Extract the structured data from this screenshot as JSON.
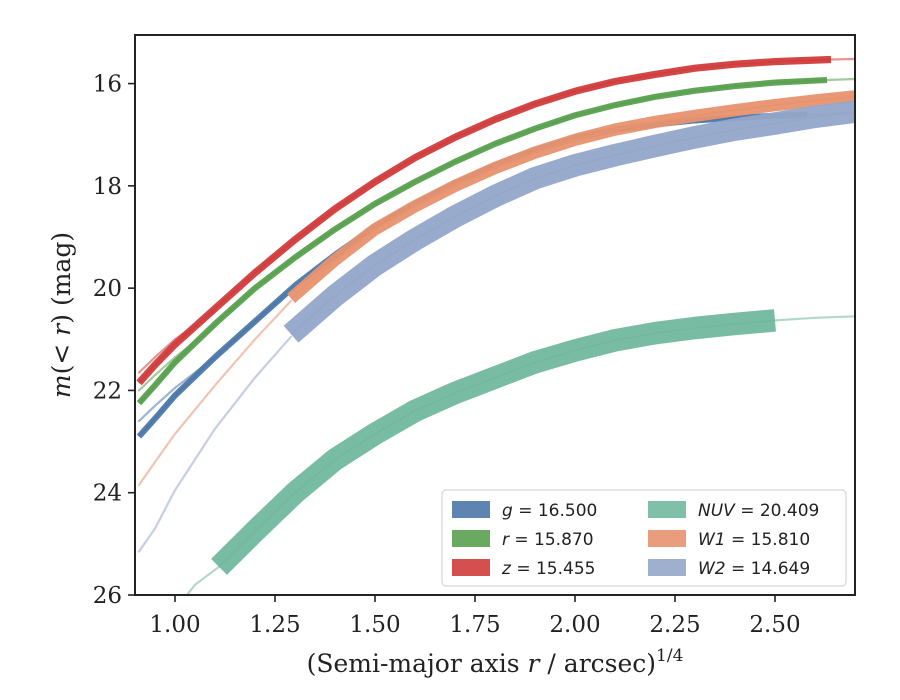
{
  "chart_data": {
    "type": "line",
    "xlabel": "(Semi-major axis r / arcsec)",
    "xlabel_parts": {
      "pre": "(Semi-major axis ",
      "var": "r",
      "post": " / arcsec)",
      "sup": "1/4"
    },
    "ylabel": "m(< r) (mag)",
    "ylabel_parts": {
      "m": "m",
      "open": "(",
      "lt": "< ",
      "r": "r",
      "rest": ") (mag)"
    },
    "xlim": [
      0.9,
      2.7
    ],
    "ylim": [
      26,
      15.05
    ],
    "y_inverted": true,
    "x_ticks": [
      "1.00",
      "1.25",
      "1.50",
      "1.75",
      "2.00",
      "2.25",
      "2.50"
    ],
    "x_tick_values": [
      1.0,
      1.25,
      1.5,
      1.75,
      2.0,
      2.25,
      2.5
    ],
    "y_ticks": [
      "16",
      "18",
      "20",
      "22",
      "24",
      "26"
    ],
    "y_tick_values": [
      16,
      18,
      20,
      22,
      24,
      26
    ],
    "grid": false,
    "legend_position": "lower-right",
    "legend_columns": 2,
    "series": [
      {
        "name": "g = 16.500",
        "band": "g",
        "mag": "16.500",
        "italic_band": true,
        "color": "#4c78a8",
        "band_width_mag": 0.06,
        "faint_x": [
          0.91,
          0.95,
          1.0,
          1.1
        ],
        "faint_y": [
          22.6,
          22.3,
          21.95,
          21.35
        ],
        "x": [
          0.91,
          0.95,
          1.0,
          1.1,
          1.2,
          1.3,
          1.4,
          1.5,
          1.6,
          1.7,
          1.8,
          1.9,
          2.0,
          2.1,
          2.2,
          2.3,
          2.4,
          2.5,
          2.58
        ],
        "y": [
          22.9,
          22.55,
          22.1,
          21.35,
          20.65,
          19.95,
          19.35,
          18.8,
          18.35,
          17.95,
          17.6,
          17.3,
          17.07,
          16.9,
          16.8,
          16.72,
          16.67,
          16.63,
          16.61
        ],
        "tail_x": [
          2.58,
          2.7
        ],
        "tail_y": [
          16.61,
          16.58
        ]
      },
      {
        "name": "r = 15.870",
        "band": "r",
        "mag": "15.870",
        "italic_band": true,
        "color": "#59a14f",
        "band_width_mag": 0.06,
        "faint_x": [
          0.91,
          0.95,
          1.0,
          1.1
        ],
        "faint_y": [
          22.0,
          21.7,
          21.35,
          20.75
        ],
        "x": [
          0.91,
          0.95,
          1.0,
          1.1,
          1.2,
          1.3,
          1.4,
          1.5,
          1.6,
          1.7,
          1.8,
          1.9,
          2.0,
          2.1,
          2.2,
          2.3,
          2.4,
          2.5,
          2.63
        ],
        "y": [
          22.25,
          21.9,
          21.45,
          20.7,
          20.0,
          19.4,
          18.85,
          18.35,
          17.92,
          17.53,
          17.18,
          16.88,
          16.62,
          16.42,
          16.26,
          16.14,
          16.05,
          15.98,
          15.93
        ],
        "tail_x": [
          2.63,
          2.7
        ],
        "tail_y": [
          15.93,
          15.91
        ]
      },
      {
        "name": "z = 15.455",
        "band": "z",
        "mag": "15.455",
        "italic_band": true,
        "color": "#d13c3c",
        "band_width_mag": 0.07,
        "faint_x": [
          0.91,
          0.95,
          1.0,
          1.1
        ],
        "faint_y": [
          21.65,
          21.35,
          21.0,
          20.45
        ],
        "x": [
          0.91,
          0.95,
          1.0,
          1.1,
          1.2,
          1.3,
          1.4,
          1.5,
          1.6,
          1.7,
          1.8,
          1.9,
          2.0,
          2.1,
          2.2,
          2.3,
          2.4,
          2.5,
          2.64
        ],
        "y": [
          21.85,
          21.5,
          21.1,
          20.4,
          19.7,
          19.05,
          18.45,
          17.92,
          17.45,
          17.05,
          16.7,
          16.4,
          16.15,
          15.96,
          15.82,
          15.7,
          15.62,
          15.57,
          15.53
        ],
        "tail_x": [
          2.64,
          2.7
        ],
        "tail_y": [
          15.53,
          15.52
        ]
      },
      {
        "name": "NUV = 20.409",
        "band": "NUV",
        "mag": "20.409",
        "italic_band": true,
        "color": "#72b89f",
        "band_width_mag": 0.22,
        "faint_x": [
          1.0,
          1.05,
          1.11
        ],
        "faint_y": [
          26.3,
          25.8,
          25.45
        ],
        "x": [
          1.11,
          1.2,
          1.3,
          1.4,
          1.5,
          1.6,
          1.7,
          1.8,
          1.9,
          2.0,
          2.1,
          2.2,
          2.3,
          2.4,
          2.5
        ],
        "y": [
          25.45,
          24.75,
          24.0,
          23.35,
          22.85,
          22.4,
          22.05,
          21.75,
          21.45,
          21.22,
          21.02,
          20.88,
          20.78,
          20.7,
          20.63
        ],
        "tail_x": [
          2.5,
          2.6,
          2.7
        ],
        "tail_y": [
          20.63,
          20.58,
          20.55
        ]
      },
      {
        "name": "W1 = 15.810",
        "band": "W1",
        "mag": "15.810",
        "italic_band": true,
        "color": "#e8926f",
        "band_width_mag": 0.12,
        "faint_x": [
          0.91,
          0.95,
          1.0,
          1.1,
          1.2,
          1.29
        ],
        "faint_y": [
          23.85,
          23.4,
          22.85,
          21.9,
          21.0,
          20.25
        ],
        "x": [
          1.29,
          1.4,
          1.5,
          1.6,
          1.7,
          1.8,
          1.9,
          2.0,
          2.1,
          2.2,
          2.3,
          2.4,
          2.5,
          2.6,
          2.7
        ],
        "y": [
          20.2,
          19.45,
          18.85,
          18.4,
          18.0,
          17.65,
          17.35,
          17.1,
          16.9,
          16.75,
          16.63,
          16.52,
          16.42,
          16.33,
          16.25
        ],
        "tail_x": [],
        "tail_y": []
      },
      {
        "name": "W2 = 14.649",
        "band": "W2",
        "mag": "14.649",
        "italic_band": true,
        "color": "#94a7c9",
        "band_width_mag": 0.22,
        "faint_x": [
          0.91,
          0.95,
          1.0,
          1.1,
          1.2,
          1.29
        ],
        "faint_y": [
          25.15,
          24.7,
          23.95,
          22.75,
          21.75,
          20.95
        ],
        "x": [
          1.29,
          1.4,
          1.5,
          1.6,
          1.7,
          1.8,
          1.9,
          2.0,
          2.1,
          2.2,
          2.3,
          2.4,
          2.5,
          2.6,
          2.7
        ],
        "y": [
          20.9,
          20.15,
          19.55,
          19.05,
          18.6,
          18.2,
          17.85,
          17.6,
          17.4,
          17.22,
          17.05,
          16.9,
          16.78,
          16.65,
          16.55
        ],
        "tail_x": [],
        "tail_y": []
      }
    ]
  }
}
